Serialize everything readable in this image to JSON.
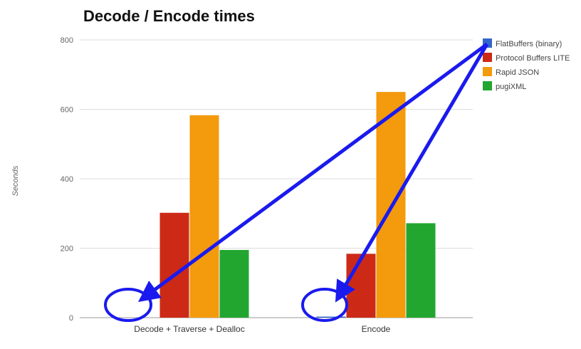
{
  "chart_data": {
    "type": "bar",
    "title": "Decode / Encode times",
    "xlabel": "",
    "ylabel": "Seconds",
    "ylim": [
      0,
      800
    ],
    "yticks": [
      0,
      200,
      400,
      600,
      800
    ],
    "grid": true,
    "legend_position": "right",
    "categories": [
      "Decode + Traverse + Dealloc",
      "Encode"
    ],
    "series": [
      {
        "name": "FlatBuffers (binary)",
        "color": "#3366cc",
        "values": [
          0,
          3
        ]
      },
      {
        "name": "Protocol Buffers LITE",
        "color": "#cc2a17",
        "values": [
          302,
          184
        ]
      },
      {
        "name": "Rapid JSON",
        "color": "#f39a0d",
        "values": [
          583,
          650
        ]
      },
      {
        "name": "pugiXML",
        "color": "#22a630",
        "values": [
          195,
          272
        ]
      }
    ],
    "annotations": {
      "arrow_color": "#1a1aee",
      "description_marks": [
        "ellipse-decode",
        "ellipse-encode",
        "arrow-to-decode",
        "arrow-to-encode"
      ]
    }
  }
}
